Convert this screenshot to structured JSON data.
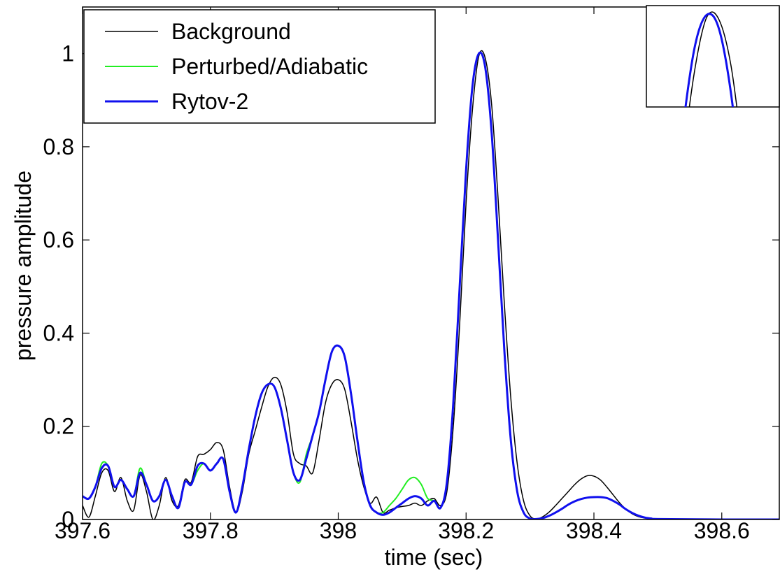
{
  "chart_data": {
    "type": "line",
    "xlabel": "time (sec)",
    "ylabel": "pressure amplitude",
    "xlim": [
      397.6,
      398.69
    ],
    "ylim": [
      0,
      1.1
    ],
    "xticks": [
      397.6,
      397.8,
      398,
      398.2,
      398.4,
      398.6
    ],
    "yticks": [
      0,
      0.2,
      0.4,
      0.6,
      0.8,
      1
    ],
    "legend": "upper left",
    "x": [
      397.6,
      397.61,
      397.62,
      397.63,
      397.64,
      397.65,
      397.66,
      397.67,
      397.68,
      397.69,
      397.7,
      397.71,
      397.72,
      397.73,
      397.74,
      397.75,
      397.76,
      397.77,
      397.78,
      397.79,
      397.8,
      397.81,
      397.82,
      397.83,
      397.84,
      397.85,
      397.86,
      397.87,
      397.88,
      397.89,
      397.9,
      397.91,
      397.92,
      397.93,
      397.94,
      397.95,
      397.96,
      397.97,
      397.98,
      397.99,
      398,
      398.01,
      398.02,
      398.03,
      398.04,
      398.05,
      398.06,
      398.07,
      398.08,
      398.09,
      398.1,
      398.11,
      398.12,
      398.13,
      398.14,
      398.15,
      398.16,
      398.17,
      398.18,
      398.19,
      398.2,
      398.21,
      398.22,
      398.23,
      398.24,
      398.25,
      398.26,
      398.27,
      398.28,
      398.29,
      398.3,
      398.31,
      398.32,
      398.33,
      398.34,
      398.35,
      398.36,
      398.37,
      398.38,
      398.39,
      398.4,
      398.41,
      398.42,
      398.43,
      398.44,
      398.45,
      398.46,
      398.47,
      398.48,
      398.49,
      398.5,
      398.6,
      398.69
    ],
    "series": [
      {
        "name": "Background",
        "color": "#000000",
        "width": 1.5,
        "values": [
          0.03,
          0.005,
          0.05,
          0.1,
          0.105,
          0.06,
          0.09,
          0.04,
          0.02,
          0.095,
          0.06,
          0.0,
          0.03,
          0.09,
          0.04,
          0.03,
          0.085,
          0.08,
          0.135,
          0.14,
          0.15,
          0.165,
          0.15,
          0.07,
          0.015,
          0.06,
          0.14,
          0.19,
          0.24,
          0.285,
          0.305,
          0.29,
          0.23,
          0.14,
          0.12,
          0.115,
          0.1,
          0.17,
          0.25,
          0.29,
          0.3,
          0.28,
          0.21,
          0.13,
          0.07,
          0.035,
          0.048,
          0.015,
          0.02,
          0.025,
          0.028,
          0.03,
          0.035,
          0.03,
          0.04,
          0.045,
          0.03,
          0.06,
          0.2,
          0.42,
          0.68,
          0.88,
          0.995,
          0.99,
          0.89,
          0.69,
          0.46,
          0.26,
          0.12,
          0.04,
          0.008,
          0.001,
          0.006,
          0.016,
          0.03,
          0.045,
          0.06,
          0.075,
          0.087,
          0.094,
          0.093,
          0.085,
          0.07,
          0.053,
          0.036,
          0.022,
          0.012,
          0.006,
          0.003,
          0.001,
          0,
          0,
          0
        ]
      },
      {
        "name": "Perturbed/Adiabatic",
        "color": "#22ee22",
        "width": 2,
        "values": [
          0.05,
          0.045,
          0.07,
          0.12,
          0.115,
          0.07,
          0.085,
          0.065,
          0.05,
          0.11,
          0.075,
          0.04,
          0.05,
          0.085,
          0.05,
          0.025,
          0.08,
          0.075,
          0.105,
          0.12,
          0.105,
          0.12,
          0.13,
          0.06,
          0.015,
          0.07,
          0.15,
          0.22,
          0.27,
          0.29,
          0.285,
          0.24,
          0.17,
          0.1,
          0.08,
          0.14,
          0.18,
          0.23,
          0.3,
          0.36,
          0.373,
          0.35,
          0.27,
          0.17,
          0.08,
          0.03,
          0.015,
          0.015,
          0.03,
          0.045,
          0.065,
          0.085,
          0.09,
          0.075,
          0.045,
          0.04,
          0.025,
          0.08,
          0.25,
          0.5,
          0.75,
          0.93,
          1.0,
          0.97,
          0.83,
          0.6,
          0.36,
          0.17,
          0.06,
          0.015,
          0.002,
          0.001,
          0.003,
          0.008,
          0.015,
          0.023,
          0.032,
          0.039,
          0.044,
          0.047,
          0.048,
          0.048,
          0.046,
          0.04,
          0.032,
          0.022,
          0.014,
          0.008,
          0.004,
          0.002,
          0.001,
          0,
          0
        ]
      },
      {
        "name": "Rytov-2",
        "color": "#1010ee",
        "width": 3,
        "values": [
          0.05,
          0.045,
          0.07,
          0.11,
          0.115,
          0.07,
          0.085,
          0.065,
          0.05,
          0.1,
          0.075,
          0.04,
          0.05,
          0.085,
          0.05,
          0.025,
          0.08,
          0.075,
          0.115,
          0.12,
          0.105,
          0.12,
          0.13,
          0.06,
          0.015,
          0.07,
          0.15,
          0.22,
          0.27,
          0.29,
          0.285,
          0.24,
          0.17,
          0.1,
          0.085,
          0.13,
          0.18,
          0.23,
          0.3,
          0.36,
          0.373,
          0.35,
          0.27,
          0.17,
          0.08,
          0.03,
          0.015,
          0.01,
          0.015,
          0.025,
          0.035,
          0.045,
          0.05,
          0.045,
          0.03,
          0.04,
          0.025,
          0.08,
          0.25,
          0.5,
          0.75,
          0.93,
          1.0,
          0.97,
          0.83,
          0.6,
          0.36,
          0.17,
          0.06,
          0.015,
          0.002,
          0.001,
          0.003,
          0.008,
          0.015,
          0.023,
          0.032,
          0.039,
          0.044,
          0.047,
          0.048,
          0.048,
          0.046,
          0.04,
          0.032,
          0.022,
          0.014,
          0.008,
          0.004,
          0.002,
          0.001,
          0,
          0
        ]
      }
    ],
    "inset": {
      "xlim": [
        398.17,
        398.28
      ],
      "ylim": [
        0.8,
        1.02
      ]
    }
  }
}
